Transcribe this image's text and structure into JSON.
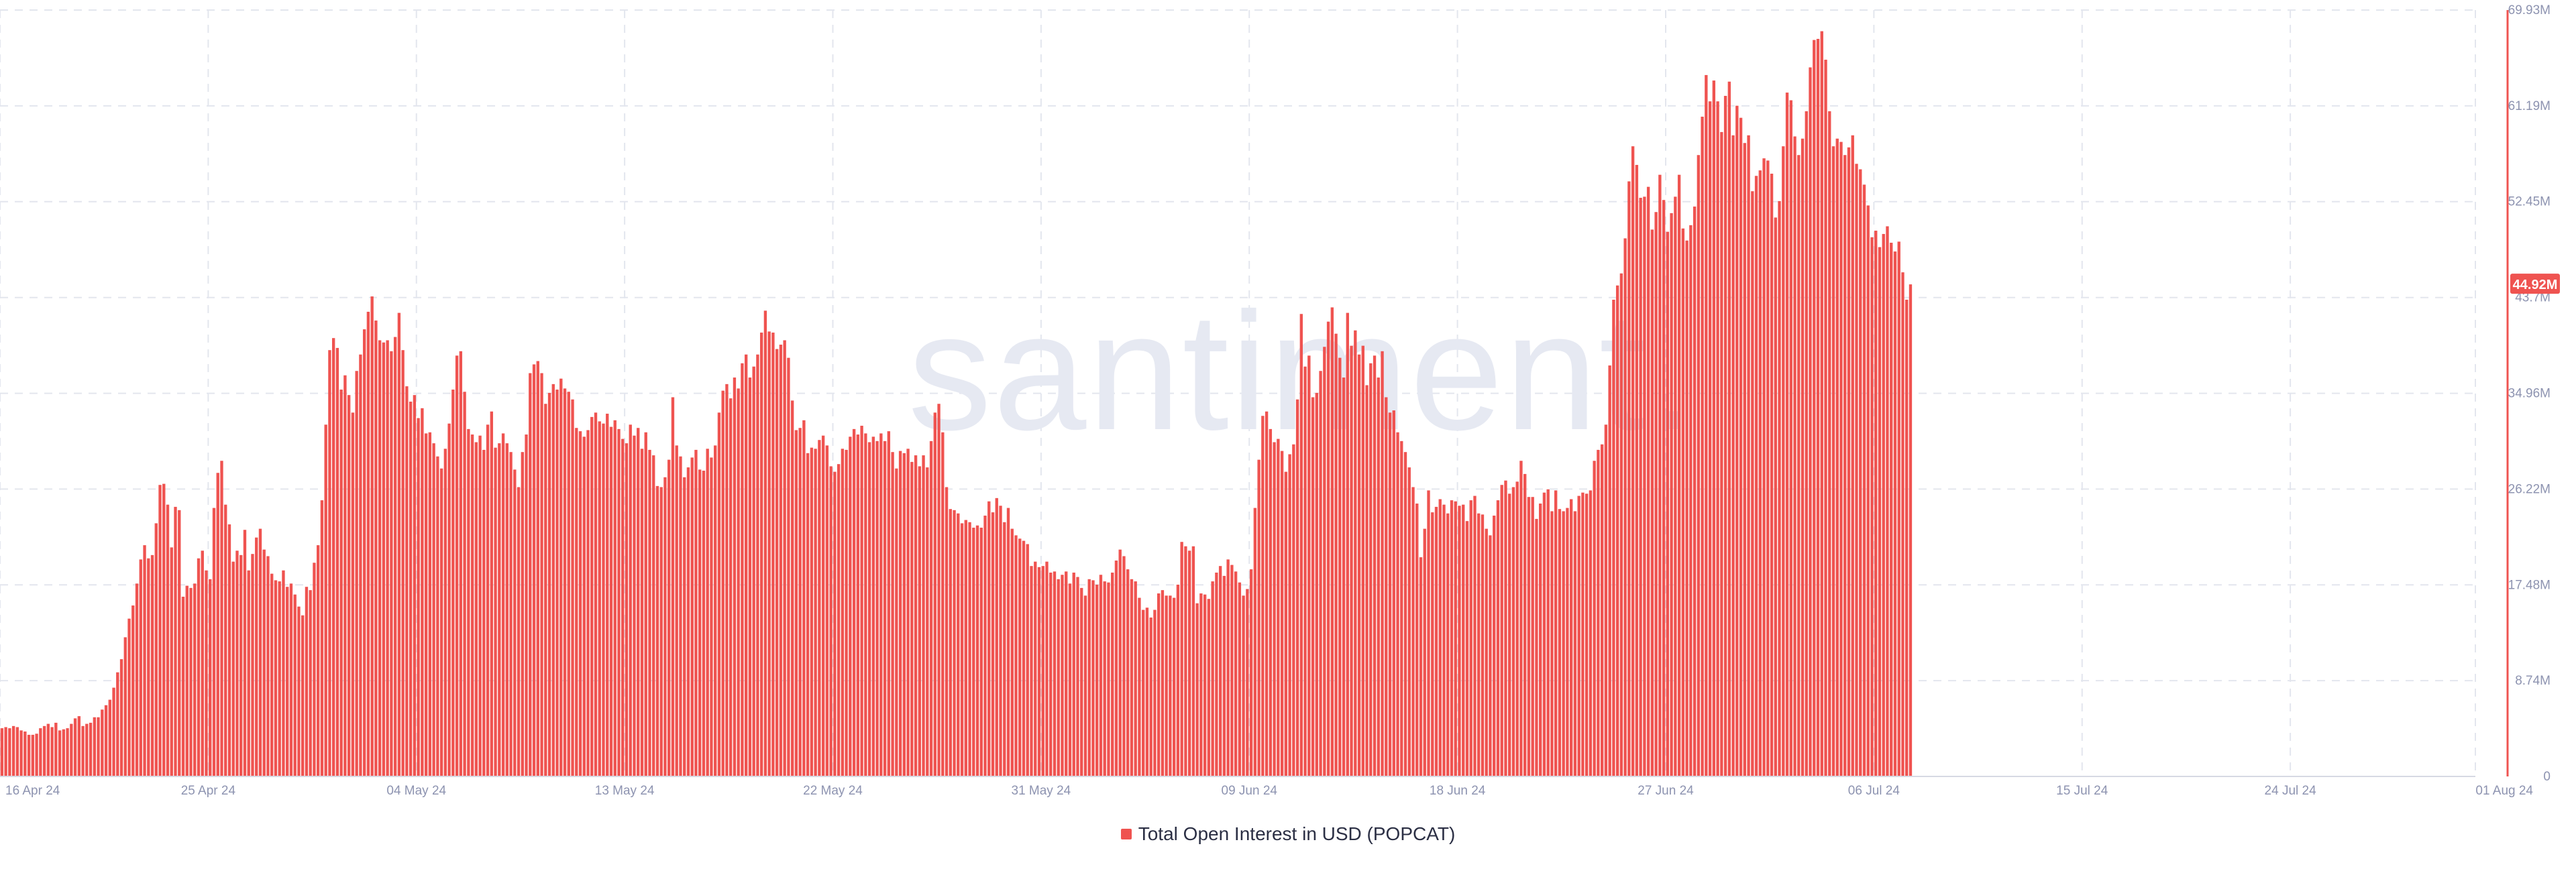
{
  "chart_data": {
    "type": "bar",
    "watermark": "santiment.",
    "series": [
      {
        "name": "Total Open Interest in USD (POPCAT)",
        "color": "#ef5350",
        "unit": "USD",
        "x_start": "2024-04-16T00:00",
        "x_end": "2024-07-31T20:00",
        "interval": "4h",
        "values_m": [
          4.4,
          4.5,
          4.4,
          4.6,
          4.5,
          4.2,
          4.1,
          3.8,
          3.8,
          3.9,
          4.4,
          4.6,
          4.8,
          4.5,
          4.9,
          4.2,
          4.3,
          4.4,
          4.8,
          5.3,
          5.5,
          4.6,
          4.8,
          4.9,
          5.4,
          5.4,
          6.1,
          6.5,
          7.0,
          8.1,
          9.5,
          10.7,
          12.7,
          14.4,
          15.6,
          17.6,
          19.8,
          21.1,
          19.9,
          20.2,
          23.1,
          26.6,
          26.7,
          24.8,
          20.9,
          24.6,
          24.3,
          16.4,
          17.4,
          17.2,
          17.6,
          19.9,
          20.6,
          18.8,
          18.0,
          24.5,
          27.7,
          28.8,
          24.8,
          23.0,
          19.6,
          20.6,
          20.2,
          22.5,
          18.8,
          20.3,
          21.8,
          22.6,
          20.7,
          20.1,
          18.5,
          17.9,
          17.8,
          18.8,
          17.3,
          17.6,
          16.6,
          15.5,
          14.7,
          17.3,
          17.0,
          19.5,
          21.1,
          25.2,
          32.1,
          38.9,
          40.0,
          39.1,
          35.3,
          36.6,
          34.8,
          33.2,
          37.0,
          38.5,
          40.8,
          42.4,
          43.8,
          41.6,
          39.8,
          39.6,
          39.8,
          38.8,
          40.1,
          42.3,
          38.9,
          35.6,
          34.2,
          34.8,
          32.7,
          33.6,
          31.3,
          31.4,
          30.4,
          29.2,
          28.1,
          29.9,
          32.2,
          35.3,
          38.4,
          38.8,
          35.1,
          31.7,
          31.2,
          30.5,
          31.1,
          29.8,
          32.1,
          33.3,
          30.0,
          30.4,
          31.3,
          30.4,
          29.6,
          28.0,
          26.4,
          29.6,
          31.2,
          36.8,
          37.6,
          37.9,
          36.8,
          34.0,
          35.0,
          35.8,
          35.3,
          36.3,
          35.4,
          35.1,
          34.4,
          31.8,
          31.5,
          31.0,
          31.6,
          32.8,
          33.2,
          32.4,
          32.2,
          33.1,
          31.9,
          32.5,
          31.7,
          30.8,
          30.4,
          32.1,
          31.1,
          31.8,
          29.9,
          31.4,
          29.8,
          29.3,
          26.5,
          26.4,
          27.3,
          28.9,
          34.6,
          30.2,
          29.2,
          27.3,
          28.2,
          29.1,
          29.8,
          28.0,
          27.9,
          29.9,
          29.1,
          30.2,
          33.2,
          35.2,
          35.8,
          34.5,
          36.4,
          35.4,
          37.7,
          38.5,
          36.4,
          37.4,
          38.5,
          40.5,
          42.5,
          40.6,
          40.5,
          39.0,
          39.4,
          39.8,
          38.2,
          34.3,
          31.6,
          31.8,
          32.5,
          29.5,
          30.0,
          29.9,
          30.7,
          31.1,
          30.2,
          28.3,
          27.8,
          28.5,
          29.9,
          29.8,
          31.0,
          31.7,
          31.2,
          32.0,
          31.3,
          30.5,
          31.0,
          30.6,
          31.3,
          30.6,
          31.5,
          29.6,
          28.1,
          29.7,
          29.5,
          29.9,
          28.7,
          29.3,
          28.3,
          29.3,
          28.2,
          30.6,
          33.2,
          34.0,
          31.4,
          26.4,
          24.4,
          24.3,
          24.0,
          23.1,
          23.4,
          23.2,
          22.7,
          22.9,
          22.7,
          23.8,
          25.1,
          24.1,
          25.4,
          24.7,
          23.2,
          24.5,
          22.6,
          22.0,
          21.7,
          21.5,
          21.2,
          19.2,
          19.6,
          19.1,
          19.2,
          19.6,
          18.6,
          18.7,
          18.0,
          18.4,
          18.7,
          17.6,
          18.6,
          18.2,
          17.2,
          16.5,
          18.0,
          17.9,
          17.5,
          18.4,
          17.8,
          17.7,
          18.6,
          19.7,
          20.7,
          20.1,
          18.9,
          18.0,
          17.8,
          16.3,
          15.2,
          15.4,
          14.5,
          15.2,
          16.7,
          17.0,
          16.5,
          16.5,
          16.3,
          17.5,
          21.4,
          21.0,
          20.6,
          21.0,
          15.8,
          16.7,
          16.6,
          16.2,
          17.8,
          18.6,
          19.2,
          18.3,
          19.8,
          19.3,
          18.7,
          17.7,
          16.5,
          17.1,
          18.9,
          24.5,
          28.9,
          32.9,
          33.3,
          31.7,
          30.5,
          30.8,
          29.7,
          27.8,
          29.4,
          30.3,
          34.4,
          42.2,
          37.4,
          38.4,
          34.6,
          35.0,
          37.0,
          39.2,
          41.5,
          42.8,
          40.4,
          38.2,
          36.4,
          42.3,
          39.3,
          40.7,
          38.5,
          39.3,
          35.7,
          37.7,
          38.4,
          36.4,
          38.8,
          34.6,
          33.2,
          33.4,
          31.4,
          30.6,
          29.6,
          28.2,
          26.4,
          24.9,
          20.0,
          22.6,
          26.1,
          24.1,
          24.6,
          25.3,
          24.8,
          24.0,
          25.2,
          25.1,
          24.7,
          24.8,
          23.3,
          25.2,
          25.6,
          24.0,
          23.9,
          22.6,
          22.0,
          23.8,
          25.2,
          26.6,
          27.0,
          25.8,
          26.4,
          26.9,
          28.8,
          27.6,
          25.5,
          25.5,
          23.5,
          24.9,
          25.9,
          26.2,
          24.2,
          26.1,
          24.4,
          24.2,
          24.5,
          25.3,
          24.2,
          25.6,
          25.9,
          25.8,
          26.1,
          28.8,
          29.8,
          30.3,
          32.1,
          37.5,
          43.5,
          44.8,
          45.9,
          49.1,
          54.3,
          57.5,
          55.8,
          52.8,
          52.9,
          53.8,
          49.9,
          51.5,
          54.9,
          52.6,
          49.7,
          51.4,
          52.9,
          54.9,
          50.0,
          48.9,
          50.3,
          52.0,
          56.7,
          60.2,
          64.0,
          61.6,
          63.5,
          61.6,
          58.8,
          62.1,
          63.4,
          58.5,
          61.2,
          60.1,
          57.8,
          58.5,
          53.4,
          54.8,
          55.3,
          56.4,
          56.2,
          55.0,
          51.0,
          52.5,
          57.5,
          62.4,
          61.7,
          58.4,
          56.7,
          58.2,
          60.7,
          64.7,
          67.2,
          67.3,
          68.0,
          65.4,
          60.7,
          57.5,
          58.2,
          57.9,
          56.7,
          57.4,
          58.5,
          55.9,
          55.4,
          54.0,
          52.1,
          49.2,
          49.8,
          48.3,
          49.5,
          50.2,
          48.7,
          47.9,
          48.8,
          46.0,
          43.5,
          44.9
        ]
      }
    ],
    "x_tick_labels": [
      "16 Apr 24",
      "25 Apr 24",
      "04 May 24",
      "13 May 24",
      "22 May 24",
      "31 May 24",
      "09 Jun 24",
      "18 Jun 24",
      "27 Jun 24",
      "06 Jul 24",
      "15 Jul 24",
      "24 Jul 24",
      "01 Aug 24"
    ],
    "y_tick_labels": [
      "0",
      "8.74M",
      "17.48M",
      "26.22M",
      "34.96M",
      "43.7M",
      "52.45M",
      "61.19M",
      "69.93M"
    ],
    "y_ticks_m": [
      0,
      8.74,
      17.48,
      26.22,
      34.96,
      43.7,
      52.45,
      61.19,
      69.93
    ],
    "ylim_m": [
      0,
      69.93
    ],
    "last_value_label": "44.92M",
    "y_axis_position": "right",
    "grid": true,
    "legend_placement": "bottom-center"
  }
}
